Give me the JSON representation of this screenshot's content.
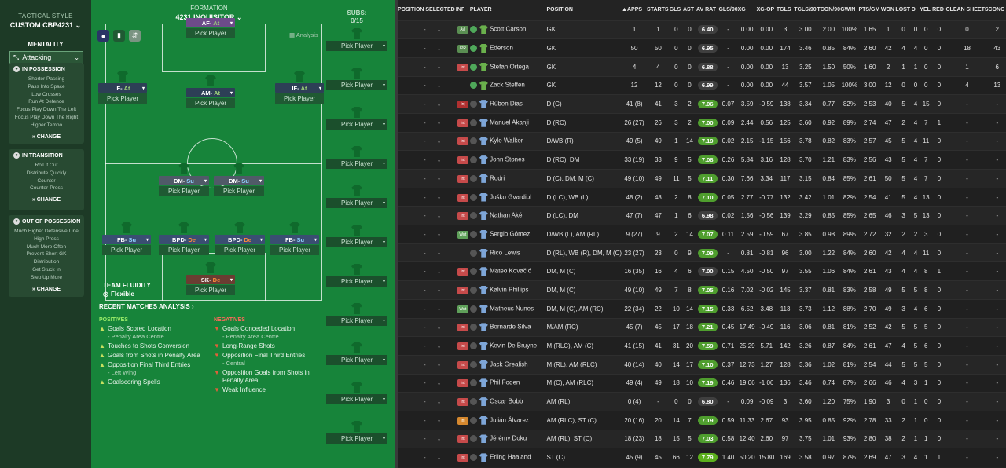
{
  "sidebar": {
    "tactical_style_label": "TACTICAL STYLE",
    "tactic_name": "CUSTOM CBP4231",
    "mentality_label": "MENTALITY",
    "mentality_value": "Attacking",
    "cards": [
      {
        "title": "IN POSSESSION",
        "items": [
          "Shorter Passing",
          "Pass Into Space",
          "Low Crosses",
          "Run At Defence",
          "Focus Play Down The Left",
          "Focus Play Down The Right",
          "Higher Tempo"
        ],
        "change": "CHANGE"
      },
      {
        "title": "IN TRANSITION",
        "items": [
          "Roll It Out",
          "Distribute Quickly",
          "Counter",
          "Counter-Press"
        ],
        "change": "CHANGE"
      },
      {
        "title": "OUT OF POSSESSION",
        "items": [
          "Much Higher Defensive Line",
          "High Press",
          "Much More Often",
          "Prevent Short GK",
          "Distribution",
          "Get Stuck In",
          "Step Up More"
        ],
        "change": "CHANGE"
      }
    ]
  },
  "formation": {
    "label": "FORMATION",
    "name": "4231 INQUISITOR",
    "analysis_label": "Analysis",
    "pick_label": "Pick Player",
    "positions": [
      {
        "role": "AF",
        "duty": "At"
      },
      {
        "role": "IF",
        "duty": "At"
      },
      {
        "role": "AM",
        "duty": "At"
      },
      {
        "role": "IF",
        "duty": "At"
      },
      {
        "role": "DM",
        "duty": "Su"
      },
      {
        "role": "DM",
        "duty": "Su"
      },
      {
        "role": "FB",
        "duty": "Su"
      },
      {
        "role": "BPD",
        "duty": "De"
      },
      {
        "role": "BPD",
        "duty": "De"
      },
      {
        "role": "FB",
        "duty": "Su"
      },
      {
        "role": "SK",
        "duty": "De"
      }
    ],
    "team_fluidity_label": "TEAM FLUIDITY",
    "team_fluidity_value": "Flexible"
  },
  "subs": {
    "label": "SUBS:",
    "count": "0/15",
    "pick_label": "Pick Player"
  },
  "analysis": {
    "title": "RECENT MATCHES ANALYSIS",
    "positives_label": "POSITIVES",
    "negatives_label": "NEGATIVES",
    "positives": [
      {
        "text": "Goals Scored Location",
        "sub": "- Penalty Area Centre"
      },
      {
        "text": "Touches to Shots Conversion",
        "sub": ""
      },
      {
        "text": "Goals from Shots in Penalty Area",
        "sub": ""
      },
      {
        "text": "Opposition Final Third Entries",
        "sub": "- Left Wing"
      },
      {
        "text": "Goalscoring Spells",
        "sub": ""
      }
    ],
    "negatives": [
      {
        "text": "Goals Conceded Location",
        "sub": "- Penalty Area Centre"
      },
      {
        "text": "Long-Range Shots",
        "sub": ""
      },
      {
        "text": "Opposition Final Third Entries",
        "sub": "- Central"
      },
      {
        "text": "Opposition Goals from Shots in Penalty Area",
        "sub": ""
      },
      {
        "text": "Weak Influence",
        "sub": ""
      }
    ]
  },
  "table": {
    "headers": [
      "POSITION SELECTED",
      "INF",
      "PLAYER",
      "POSITION",
      "APPS",
      "STARTS",
      "GLS",
      "AST",
      "AV RAT",
      "GLS/90",
      "XG",
      "XG-OP",
      "TGLS",
      "TGLS/90",
      "TCON/90",
      "GWIN",
      "PTS/GM",
      "WON",
      "LOST",
      "D",
      "YEL",
      "RED",
      "CLEAN SHEETS",
      "CONC"
    ],
    "rows": [
      {
        "sel": "-",
        "inf": "Avl",
        "infc": "bavl",
        "name": "Scott Carson",
        "pos": "GK",
        "gk": true,
        "apps": "1",
        "starts": "1",
        "gls": "0",
        "ast": "0",
        "rat": "6.40",
        "ratc": "",
        "g90": "-",
        "xg": "0.00",
        "xgop": "0.00",
        "tgls": "3",
        "tg90": "3.00",
        "tc90": "2.00",
        "gwin": "100%",
        "ptsgm": "1.65",
        "won": "1",
        "lost": "0",
        "d": "0",
        "yel": "0",
        "red": "0",
        "cs": "0",
        "conc": "2"
      },
      {
        "sel": "-",
        "inf": "IPR",
        "infc": "bavl",
        "name": "Ederson",
        "pos": "GK",
        "gk": true,
        "apps": "50",
        "starts": "50",
        "gls": "0",
        "ast": "0",
        "rat": "6.95",
        "ratc": "",
        "g90": "-",
        "xg": "0.00",
        "xgop": "0.00",
        "tgls": "174",
        "tg90": "3.46",
        "tc90": "0.85",
        "gwin": "84%",
        "ptsgm": "2.60",
        "won": "42",
        "lost": "4",
        "d": "4",
        "yel": "0",
        "red": "0",
        "cs": "18",
        "conc": "43"
      },
      {
        "sel": "-",
        "inf": "Int",
        "infc": "bint",
        "name": "Stefan Ortega",
        "pos": "GK",
        "gk": true,
        "apps": "4",
        "starts": "4",
        "gls": "0",
        "ast": "0",
        "rat": "6.88",
        "ratc": "",
        "g90": "-",
        "xg": "0.00",
        "xgop": "0.00",
        "tgls": "13",
        "tg90": "3.25",
        "tc90": "1.50",
        "gwin": "50%",
        "ptsgm": "1.60",
        "won": "2",
        "lost": "1",
        "d": "1",
        "yel": "0",
        "red": "0",
        "cs": "1",
        "conc": "6"
      },
      {
        "sel": "-",
        "inf": "",
        "infc": "",
        "name": "Zack Steffen",
        "pos": "GK",
        "gk": true,
        "apps": "12",
        "starts": "12",
        "gls": "0",
        "ast": "0",
        "rat": "6.99",
        "ratc": "",
        "g90": "-",
        "xg": "0.00",
        "xgop": "0.00",
        "tgls": "44",
        "tg90": "3.57",
        "tc90": "1.05",
        "gwin": "100%",
        "ptsgm": "3.00",
        "won": "12",
        "lost": "0",
        "d": "0",
        "yel": "0",
        "red": "0",
        "cs": "4",
        "conc": "13"
      },
      {
        "sel": "-",
        "inf": "Inj",
        "infc": "binj",
        "name": "Rúben Dias",
        "pos": "D (C)",
        "gk": false,
        "apps": "41 (8)",
        "starts": "41",
        "gls": "3",
        "ast": "2",
        "rat": "7.06",
        "ratc": "gr",
        "g90": "0.07",
        "xg": "3.59",
        "xgop": "-0.59",
        "tgls": "138",
        "tg90": "3.34",
        "tc90": "0.77",
        "gwin": "82%",
        "ptsgm": "2.53",
        "won": "40",
        "lost": "5",
        "d": "4",
        "yel": "15",
        "red": "0",
        "cs": "-",
        "conc": "-"
      },
      {
        "sel": "-",
        "inf": "Int",
        "infc": "bint",
        "name": "Manuel Akanji",
        "pos": "D (RC)",
        "gk": false,
        "apps": "26 (27)",
        "starts": "26",
        "gls": "3",
        "ast": "2",
        "rat": "7.00",
        "ratc": "gr",
        "g90": "0.09",
        "xg": "2.44",
        "xgop": "0.56",
        "tgls": "125",
        "tg90": "3.60",
        "tc90": "0.92",
        "gwin": "89%",
        "ptsgm": "2.74",
        "won": "47",
        "lost": "2",
        "d": "4",
        "yel": "7",
        "red": "1",
        "cs": "-",
        "conc": "-"
      },
      {
        "sel": "-",
        "inf": "Int",
        "infc": "bint",
        "name": "Kyle Walker",
        "pos": "D/WB (R)",
        "gk": false,
        "apps": "49 (5)",
        "starts": "49",
        "gls": "1",
        "ast": "14",
        "rat": "7.19",
        "ratc": "gr",
        "g90": "0.02",
        "xg": "2.15",
        "xgop": "-1.15",
        "tgls": "156",
        "tg90": "3.78",
        "tc90": "0.82",
        "gwin": "83%",
        "ptsgm": "2.57",
        "won": "45",
        "lost": "5",
        "d": "4",
        "yel": "11",
        "red": "0",
        "cs": "-",
        "conc": "-"
      },
      {
        "sel": "-",
        "inf": "Int",
        "infc": "bint",
        "name": "John Stones",
        "pos": "D (RC), DM",
        "gk": false,
        "apps": "33 (19)",
        "starts": "33",
        "gls": "9",
        "ast": "5",
        "rat": "7.08",
        "ratc": "gr",
        "g90": "0.26",
        "xg": "5.84",
        "xgop": "3.16",
        "tgls": "128",
        "tg90": "3.70",
        "tc90": "1.21",
        "gwin": "83%",
        "ptsgm": "2.56",
        "won": "43",
        "lost": "5",
        "d": "4",
        "yel": "7",
        "red": "0",
        "cs": "-",
        "conc": "-"
      },
      {
        "sel": "-",
        "inf": "Int",
        "infc": "bint",
        "name": "Rodri",
        "pos": "D (C), DM, M (C)",
        "gk": false,
        "apps": "49 (10)",
        "starts": "49",
        "gls": "11",
        "ast": "5",
        "rat": "7.11",
        "ratc": "gr",
        "g90": "0.30",
        "xg": "7.66",
        "xgop": "3.34",
        "tgls": "117",
        "tg90": "3.15",
        "tc90": "0.84",
        "gwin": "85%",
        "ptsgm": "2.61",
        "won": "50",
        "lost": "5",
        "d": "4",
        "yel": "7",
        "red": "0",
        "cs": "-",
        "conc": "-"
      },
      {
        "sel": "-",
        "inf": "Int",
        "infc": "bint",
        "name": "Joško Gvardiol",
        "pos": "D (LC), WB (L)",
        "gk": false,
        "apps": "48 (2)",
        "starts": "48",
        "gls": "2",
        "ast": "8",
        "rat": "7.10",
        "ratc": "gr",
        "g90": "0.05",
        "xg": "2.77",
        "xgop": "-0.77",
        "tgls": "132",
        "tg90": "3.42",
        "tc90": "1.01",
        "gwin": "82%",
        "ptsgm": "2.54",
        "won": "41",
        "lost": "5",
        "d": "4",
        "yel": "13",
        "red": "0",
        "cs": "-",
        "conc": "-"
      },
      {
        "sel": "-",
        "inf": "Int",
        "infc": "bint",
        "name": "Nathan Aké",
        "pos": "D (LC), DM",
        "gk": false,
        "apps": "47 (7)",
        "starts": "47",
        "gls": "1",
        "ast": "6",
        "rat": "6.98",
        "ratc": "",
        "g90": "0.02",
        "xg": "1.56",
        "xgop": "-0.56",
        "tgls": "139",
        "tg90": "3.29",
        "tc90": "0.85",
        "gwin": "85%",
        "ptsgm": "2.65",
        "won": "46",
        "lost": "3",
        "d": "5",
        "yel": "13",
        "red": "0",
        "cs": "-",
        "conc": "-"
      },
      {
        "sel": "-",
        "inf": "Wnt",
        "infc": "bwnt",
        "name": "Sergio Gómez",
        "pos": "D/WB (L), AM (RL)",
        "gk": false,
        "apps": "9 (27)",
        "starts": "9",
        "gls": "2",
        "ast": "14",
        "rat": "7.07",
        "ratc": "gr",
        "g90": "0.11",
        "xg": "2.59",
        "xgop": "-0.59",
        "tgls": "67",
        "tg90": "3.85",
        "tc90": "0.98",
        "gwin": "89%",
        "ptsgm": "2.72",
        "won": "32",
        "lost": "2",
        "d": "2",
        "yel": "3",
        "red": "0",
        "cs": "-",
        "conc": "-"
      },
      {
        "sel": "-",
        "inf": "",
        "infc": "",
        "name": "Rico Lewis",
        "pos": "D (RL), WB (R), DM, M (C)",
        "gk": false,
        "apps": "23 (27)",
        "starts": "23",
        "gls": "0",
        "ast": "9",
        "rat": "7.09",
        "ratc": "gr",
        "g90": "-",
        "xg": "0.81",
        "xgop": "-0.81",
        "tgls": "96",
        "tg90": "3.00",
        "tc90": "1.22",
        "gwin": "84%",
        "ptsgm": "2.60",
        "won": "42",
        "lost": "4",
        "d": "4",
        "yel": "11",
        "red": "0",
        "cs": "-",
        "conc": "-"
      },
      {
        "sel": "-",
        "inf": "Int",
        "infc": "bint",
        "name": "Mateo Kovačić",
        "pos": "DM, M (C)",
        "gk": false,
        "apps": "16 (35)",
        "starts": "16",
        "gls": "4",
        "ast": "6",
        "rat": "7.00",
        "ratc": "",
        "g90": "0.15",
        "xg": "4.50",
        "xgop": "-0.50",
        "tgls": "97",
        "tg90": "3.55",
        "tc90": "1.06",
        "gwin": "84%",
        "ptsgm": "2.61",
        "won": "43",
        "lost": "4",
        "d": "4",
        "yel": "8",
        "red": "1",
        "cs": "-",
        "conc": "-"
      },
      {
        "sel": "-",
        "inf": "Int",
        "infc": "bint",
        "name": "Kalvin Phillips",
        "pos": "DM, M (C)",
        "gk": false,
        "apps": "49 (10)",
        "starts": "49",
        "gls": "7",
        "ast": "8",
        "rat": "7.05",
        "ratc": "gr",
        "g90": "0.16",
        "xg": "7.02",
        "xgop": "-0.02",
        "tgls": "145",
        "tg90": "3.37",
        "tc90": "0.81",
        "gwin": "83%",
        "ptsgm": "2.58",
        "won": "49",
        "lost": "5",
        "d": "5",
        "yel": "8",
        "red": "0",
        "cs": "-",
        "conc": "-"
      },
      {
        "sel": "-",
        "inf": "Wnt",
        "infc": "bwnt",
        "name": "Matheus Nunes",
        "pos": "DM, M (C), AM (RC)",
        "gk": false,
        "apps": "22 (34)",
        "starts": "22",
        "gls": "10",
        "ast": "14",
        "rat": "7.15",
        "ratc": "gr",
        "g90": "0.33",
        "xg": "6.52",
        "xgop": "3.48",
        "tgls": "113",
        "tg90": "3.73",
        "tc90": "1.12",
        "gwin": "88%",
        "ptsgm": "2.70",
        "won": "49",
        "lost": "3",
        "d": "4",
        "yel": "6",
        "red": "0",
        "cs": "-",
        "conc": "-"
      },
      {
        "sel": "-",
        "inf": "Int",
        "infc": "bint",
        "name": "Bernardo Silva",
        "pos": "M/AM (RC)",
        "gk": false,
        "apps": "45 (7)",
        "starts": "45",
        "gls": "17",
        "ast": "18",
        "rat": "7.21",
        "ratc": "gr",
        "g90": "0.45",
        "xg": "17.49",
        "xgop": "-0.49",
        "tgls": "116",
        "tg90": "3.06",
        "tc90": "0.81",
        "gwin": "81%",
        "ptsgm": "2.52",
        "won": "42",
        "lost": "5",
        "d": "5",
        "yel": "5",
        "red": "0",
        "cs": "-",
        "conc": "-"
      },
      {
        "sel": "-",
        "inf": "Int",
        "infc": "bint",
        "name": "Kevin De Bruyne",
        "pos": "M (RLC), AM (C)",
        "gk": false,
        "apps": "41 (15)",
        "starts": "41",
        "gls": "31",
        "ast": "20",
        "rat": "7.59",
        "ratc": "gr",
        "g90": "0.71",
        "xg": "25.29",
        "xgop": "5.71",
        "tgls": "142",
        "tg90": "3.26",
        "tc90": "0.87",
        "gwin": "84%",
        "ptsgm": "2.61",
        "won": "47",
        "lost": "4",
        "d": "5",
        "yel": "6",
        "red": "0",
        "cs": "-",
        "conc": "-"
      },
      {
        "sel": "-",
        "inf": "Int",
        "infc": "bint",
        "name": "Jack Grealish",
        "pos": "M (RL), AM (RLC)",
        "gk": false,
        "apps": "40 (14)",
        "starts": "40",
        "gls": "14",
        "ast": "17",
        "rat": "7.10",
        "ratc": "gr",
        "g90": "0.37",
        "xg": "12.73",
        "xgop": "1.27",
        "tgls": "128",
        "tg90": "3.36",
        "tc90": "1.02",
        "gwin": "81%",
        "ptsgm": "2.54",
        "won": "44",
        "lost": "5",
        "d": "5",
        "yel": "5",
        "red": "0",
        "cs": "-",
        "conc": "-"
      },
      {
        "sel": "-",
        "inf": "Int",
        "infc": "bint",
        "name": "Phil Foden",
        "pos": "M (C), AM (RLC)",
        "gk": false,
        "apps": "49 (4)",
        "starts": "49",
        "gls": "18",
        "ast": "10",
        "rat": "7.19",
        "ratc": "gr",
        "g90": "0.46",
        "xg": "19.06",
        "xgop": "-1.06",
        "tgls": "136",
        "tg90": "3.46",
        "tc90": "0.74",
        "gwin": "87%",
        "ptsgm": "2.66",
        "won": "46",
        "lost": "4",
        "d": "3",
        "yel": "1",
        "red": "0",
        "cs": "-",
        "conc": "-"
      },
      {
        "sel": "-",
        "inf": "Int",
        "infc": "bint",
        "name": "Oscar Bobb",
        "pos": "AM (RL)",
        "gk": false,
        "apps": "0 (4)",
        "starts": "-",
        "gls": "0",
        "ast": "0",
        "rat": "6.80",
        "ratc": "",
        "g90": "-",
        "xg": "0.09",
        "xgop": "-0.09",
        "tgls": "3",
        "tg90": "3.60",
        "tc90": "1.20",
        "gwin": "75%",
        "ptsgm": "1.90",
        "won": "3",
        "lost": "0",
        "d": "1",
        "yel": "0",
        "red": "0",
        "cs": "-",
        "conc": "-"
      },
      {
        "sel": "-",
        "inf": "Inj",
        "infc": "binjo",
        "name": "Julián Álvarez",
        "pos": "AM (RLC), ST (C)",
        "gk": false,
        "apps": "20 (16)",
        "starts": "20",
        "gls": "14",
        "ast": "7",
        "rat": "7.19",
        "ratc": "gr",
        "g90": "0.59",
        "xg": "11.33",
        "xgop": "2.67",
        "tgls": "93",
        "tg90": "3.95",
        "tc90": "0.85",
        "gwin": "92%",
        "ptsgm": "2.78",
        "won": "33",
        "lost": "2",
        "d": "1",
        "yel": "0",
        "red": "0",
        "cs": "-",
        "conc": "-"
      },
      {
        "sel": "-",
        "inf": "Int",
        "infc": "bint",
        "name": "Jérémy Doku",
        "pos": "AM (RL), ST (C)",
        "gk": false,
        "apps": "18 (23)",
        "starts": "18",
        "gls": "15",
        "ast": "5",
        "rat": "7.03",
        "ratc": "gr",
        "g90": "0.58",
        "xg": "12.40",
        "xgop": "2.60",
        "tgls": "97",
        "tg90": "3.75",
        "tc90": "1.01",
        "gwin": "93%",
        "ptsgm": "2.80",
        "won": "38",
        "lost": "2",
        "d": "1",
        "yel": "1",
        "red": "0",
        "cs": "-",
        "conc": "-"
      },
      {
        "sel": "-",
        "inf": "Int",
        "infc": "bint",
        "name": "Erling Haaland",
        "pos": "ST (C)",
        "gk": false,
        "apps": "45 (9)",
        "starts": "45",
        "gls": "66",
        "ast": "12",
        "rat": "7.79",
        "ratc": "bg",
        "g90": "1.40",
        "xg": "50.20",
        "xgop": "15.80",
        "tgls": "169",
        "tg90": "3.58",
        "tc90": "0.97",
        "gwin": "87%",
        "ptsgm": "2.69",
        "won": "47",
        "lost": "3",
        "d": "4",
        "yel": "1",
        "red": "1",
        "cs": "-",
        "conc": "-"
      }
    ]
  }
}
